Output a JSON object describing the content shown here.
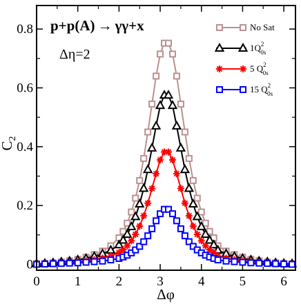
{
  "chart_data": {
    "type": "line",
    "xlabel": "Δφ",
    "ylabel": "C",
    "ylabel_sub": "2",
    "xlim": [
      0,
      6.283
    ],
    "ylim": [
      -0.02,
      0.88
    ],
    "xticks": [
      "0",
      "1",
      "2",
      "3",
      "4",
      "5",
      "6"
    ],
    "yticks": [
      "0",
      "0.2",
      "0.4",
      "0.6",
      "0.8"
    ],
    "annotations": {
      "process_left": "p+p(A)",
      "process_arrow": "→",
      "process_right": "γγ+x",
      "eta": "Δη=2"
    },
    "x": [
      0.0,
      0.2,
      0.4,
      0.6,
      0.8,
      1.0,
      1.2,
      1.4,
      1.6,
      1.8,
      2.0,
      2.1,
      2.2,
      2.3,
      2.4,
      2.5,
      2.6,
      2.7,
      2.8,
      2.9,
      3.0,
      3.1,
      3.2,
      3.3,
      3.4,
      3.5,
      3.6,
      3.7,
      3.8,
      3.9,
      4.0,
      4.1,
      4.2,
      4.3,
      4.4,
      4.6,
      4.8,
      5.0,
      5.2,
      5.4,
      5.6,
      5.8,
      6.0,
      6.2
    ],
    "series": [
      {
        "name": "No Sat",
        "color": "#bc8f8f",
        "marker": "square",
        "values": [
          0.002,
          0.003,
          0.005,
          0.008,
          0.012,
          0.017,
          0.024,
          0.033,
          0.045,
          0.063,
          0.09,
          0.112,
          0.14,
          0.178,
          0.225,
          0.285,
          0.36,
          0.45,
          0.545,
          0.64,
          0.715,
          0.752,
          0.752,
          0.715,
          0.64,
          0.545,
          0.45,
          0.36,
          0.285,
          0.225,
          0.178,
          0.14,
          0.112,
          0.09,
          0.063,
          0.045,
          0.033,
          0.024,
          0.017,
          0.012,
          0.008,
          0.005,
          0.003,
          0.002
        ]
      },
      {
        "name": "1Q",
        "name_sup": "2",
        "name_sub": "0s",
        "color": "#000000",
        "marker": "triangle",
        "values": [
          0.002,
          0.003,
          0.005,
          0.008,
          0.011,
          0.015,
          0.02,
          0.027,
          0.036,
          0.048,
          0.066,
          0.082,
          0.102,
          0.128,
          0.162,
          0.205,
          0.258,
          0.322,
          0.395,
          0.47,
          0.54,
          0.575,
          0.575,
          0.54,
          0.47,
          0.395,
          0.322,
          0.258,
          0.205,
          0.162,
          0.128,
          0.102,
          0.082,
          0.066,
          0.048,
          0.036,
          0.027,
          0.02,
          0.015,
          0.011,
          0.008,
          0.005,
          0.003,
          0.002
        ]
      },
      {
        "name": "5 Q",
        "name_sup": "2",
        "name_sub": "0s",
        "color": "#ff0000",
        "marker": "star",
        "values": [
          0.001,
          0.002,
          0.003,
          0.005,
          0.007,
          0.009,
          0.012,
          0.016,
          0.021,
          0.028,
          0.04,
          0.05,
          0.063,
          0.08,
          0.102,
          0.13,
          0.165,
          0.208,
          0.258,
          0.308,
          0.355,
          0.382,
          0.382,
          0.355,
          0.308,
          0.258,
          0.208,
          0.165,
          0.13,
          0.102,
          0.08,
          0.063,
          0.05,
          0.04,
          0.028,
          0.021,
          0.016,
          0.012,
          0.009,
          0.007,
          0.005,
          0.003,
          0.002,
          0.001
        ]
      },
      {
        "name": "15 Q",
        "name_sup": "2",
        "name_sub": "0s",
        "color": "#0000ff",
        "marker": "square",
        "values": [
          0.0,
          0.001,
          0.002,
          0.003,
          0.004,
          0.005,
          0.007,
          0.009,
          0.011,
          0.015,
          0.02,
          0.025,
          0.031,
          0.039,
          0.049,
          0.061,
          0.077,
          0.097,
          0.121,
          0.148,
          0.172,
          0.187,
          0.187,
          0.172,
          0.148,
          0.121,
          0.097,
          0.077,
          0.061,
          0.049,
          0.039,
          0.031,
          0.025,
          0.02,
          0.015,
          0.011,
          0.009,
          0.007,
          0.005,
          0.004,
          0.003,
          0.002,
          0.001,
          0.0
        ]
      }
    ],
    "legend_position": "top-right"
  }
}
